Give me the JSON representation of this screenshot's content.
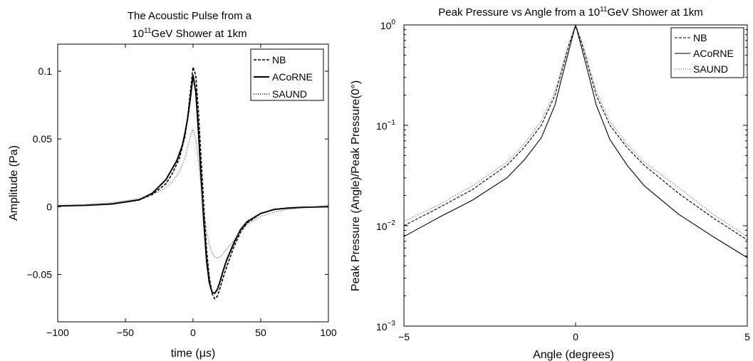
{
  "chart_data": [
    {
      "type": "line",
      "title_line1": "The Acoustic Pulse from a",
      "title_line2_base": "10",
      "title_line2_exp": "11",
      "title_line2_rest": "GeV Shower at 1km",
      "xlabel_pre": "time (",
      "xlabel_mu": "μ",
      "xlabel_unit": "s",
      "xlabel_post": ")",
      "ylabel": "Amplitude (Pa)",
      "xlim": [
        -100,
        100
      ],
      "ylim": [
        -0.085,
        0.12
      ],
      "xticks": [
        -100,
        -50,
        0,
        50,
        100
      ],
      "xtick_labels": [
        "−100",
        "−50",
        "0",
        "50",
        "100"
      ],
      "yticks": [
        -0.05,
        0,
        0.05,
        0.1
      ],
      "ytick_labels": [
        "−0.05",
        "0",
        "0.05",
        "0.1"
      ],
      "grid": false,
      "legend_position": "top-right",
      "series": [
        {
          "name": "NB",
          "style": "dashed",
          "x": [
            -100,
            -80,
            -60,
            -40,
            -30,
            -20,
            -15,
            -10,
            -6,
            -4,
            -2,
            0,
            2,
            4,
            6,
            8,
            10,
            12,
            14,
            16,
            18,
            20,
            22,
            25,
            30,
            35,
            40,
            50,
            60,
            70,
            80,
            100
          ],
          "y": [
            0.0005,
            0.001,
            0.002,
            0.005,
            0.009,
            0.017,
            0.025,
            0.036,
            0.052,
            0.066,
            0.085,
            0.103,
            0.097,
            0.07,
            0.034,
            0.0,
            -0.032,
            -0.052,
            -0.064,
            -0.068,
            -0.066,
            -0.06,
            -0.053,
            -0.044,
            -0.03,
            -0.019,
            -0.012,
            -0.005,
            -0.002,
            -0.001,
            -0.0005,
            0.0
          ]
        },
        {
          "name": "ACoRNE",
          "style": "solid",
          "x": [
            -100,
            -80,
            -60,
            -40,
            -30,
            -20,
            -16,
            -12,
            -8,
            -6,
            -4,
            -2,
            0,
            2,
            4,
            6,
            8,
            10,
            12,
            14,
            16,
            18,
            20,
            22,
            25,
            30,
            35,
            40,
            50,
            60,
            70,
            80,
            100
          ],
          "y": [
            0.0005,
            0.001,
            0.002,
            0.005,
            0.01,
            0.02,
            0.027,
            0.034,
            0.045,
            0.054,
            0.065,
            0.08,
            0.097,
            0.085,
            0.055,
            0.02,
            -0.012,
            -0.04,
            -0.056,
            -0.063,
            -0.064,
            -0.061,
            -0.055,
            -0.048,
            -0.039,
            -0.027,
            -0.017,
            -0.011,
            -0.005,
            -0.002,
            -0.001,
            -0.0005,
            0.0
          ]
        },
        {
          "name": "SAUND",
          "style": "dotted",
          "x": [
            -100,
            -80,
            -60,
            -40,
            -30,
            -20,
            -15,
            -10,
            -6,
            -4,
            -2,
            0,
            2,
            4,
            6,
            8,
            10,
            12,
            14,
            16,
            18,
            20,
            22,
            25,
            30,
            35,
            40,
            50,
            60,
            70,
            80,
            90,
            100
          ],
          "y": [
            0.001,
            0.0015,
            0.003,
            0.006,
            0.009,
            0.014,
            0.019,
            0.026,
            0.036,
            0.044,
            0.052,
            0.057,
            0.05,
            0.033,
            0.014,
            -0.004,
            -0.018,
            -0.028,
            -0.034,
            -0.037,
            -0.038,
            -0.037,
            -0.035,
            -0.031,
            -0.025,
            -0.018,
            -0.013,
            -0.007,
            -0.004,
            -0.002,
            -0.001,
            0.0,
            0.001
          ]
        }
      ]
    },
    {
      "type": "line",
      "title_pre": "Peak Pressure vs Angle from a ",
      "title_base": "10",
      "title_exp": "11",
      "title_rest": "GeV Shower at 1km",
      "xlabel": "Angle (degrees)",
      "ylabel": "Peak Pressure (Angle)/Peak Pressure(0°)",
      "xlim": [
        -5,
        5
      ],
      "ylim": [
        0.001,
        1
      ],
      "yscale": "log",
      "xticks": [
        -5,
        0,
        5
      ],
      "xtick_labels": [
        "−5",
        "0",
        "5"
      ],
      "yticks": [
        0.001,
        0.01,
        0.1,
        1
      ],
      "ytick_base": "10",
      "ytick_exps": [
        "−3",
        "−2",
        "−1",
        "0"
      ],
      "grid": false,
      "legend_position": "top-right",
      "series": [
        {
          "name": "NB",
          "style": "dashed",
          "x": [
            -5,
            -4,
            -3,
            -2,
            -1.5,
            -1,
            -0.6,
            -0.4,
            -0.2,
            0,
            0.2,
            0.4,
            0.6,
            1,
            1.5,
            2,
            3,
            4,
            5
          ],
          "y": [
            0.01,
            0.015,
            0.023,
            0.04,
            0.06,
            0.1,
            0.2,
            0.35,
            0.62,
            1.0,
            0.62,
            0.35,
            0.2,
            0.1,
            0.06,
            0.04,
            0.021,
            0.012,
            0.0072
          ]
        },
        {
          "name": "ACoRNE",
          "style": "solid",
          "x": [
            -5,
            -4,
            -3,
            -2,
            -1.5,
            -1,
            -0.6,
            -0.4,
            -0.2,
            0,
            0.2,
            0.4,
            0.6,
            1,
            1.5,
            2,
            3,
            4,
            5
          ],
          "y": [
            0.0078,
            0.012,
            0.018,
            0.03,
            0.045,
            0.075,
            0.16,
            0.3,
            0.55,
            1.0,
            0.55,
            0.3,
            0.16,
            0.072,
            0.04,
            0.025,
            0.013,
            0.0078,
            0.0048
          ]
        },
        {
          "name": "SAUND",
          "style": "dotted",
          "x": [
            -5,
            -4,
            -3,
            -2,
            -1.5,
            -1,
            -0.6,
            -0.4,
            -0.2,
            0,
            0.2,
            0.4,
            0.6,
            1,
            1.5,
            2,
            3,
            4,
            5
          ],
          "y": [
            0.011,
            0.016,
            0.025,
            0.043,
            0.065,
            0.11,
            0.22,
            0.38,
            0.66,
            1.0,
            0.66,
            0.38,
            0.22,
            0.11,
            0.065,
            0.043,
            0.024,
            0.013,
            0.0078
          ]
        }
      ]
    }
  ]
}
